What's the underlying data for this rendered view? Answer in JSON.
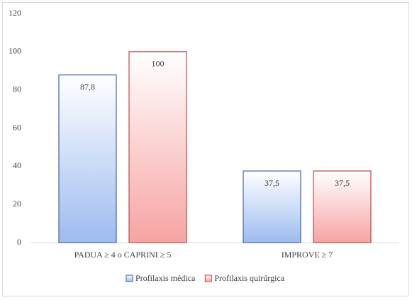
{
  "chart_data": {
    "type": "bar",
    "categories": [
      "PADUA ≥ 4 o CAPRINI ≥ 5",
      "IMPROVE ≥ 7"
    ],
    "series": [
      {
        "name": "Profilaxis médica",
        "color": "#9dbbf0",
        "border_color": "#41669f",
        "values": [
          87.8,
          37.5
        ],
        "value_labels": [
          "87,8",
          "37,5"
        ]
      },
      {
        "name": "Profilaxis quirúrgica",
        "color": "#f7a3a3",
        "border_color": "#b84a47",
        "values": [
          100,
          37.5
        ],
        "value_labels": [
          "100",
          "37,5"
        ]
      }
    ],
    "ylim": [
      0,
      120
    ],
    "yticks": [
      0,
      20,
      40,
      60,
      80,
      100,
      120
    ],
    "grid": false,
    "legend": "bottom"
  }
}
